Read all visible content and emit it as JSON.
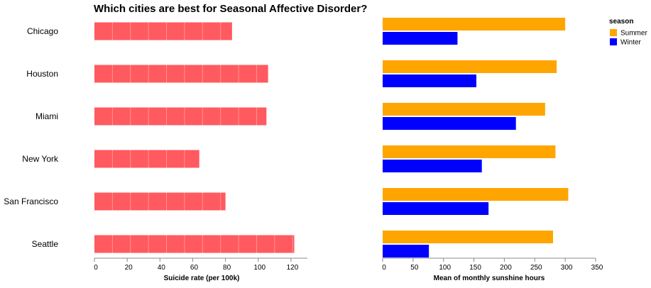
{
  "chart_data": [
    {
      "type": "bar",
      "orientation": "horizontal",
      "title": "Which cities are best for Seasonal Affective Disorder?",
      "categories": [
        "Chicago",
        "Houston",
        "Miami",
        "New York",
        "San Francisco",
        "Seattle"
      ],
      "values": [
        84,
        106,
        105,
        64,
        80,
        122
      ],
      "xlabel": "Suicide rate (per 100k)",
      "xlim": [
        0,
        130
      ],
      "xticks": [
        0,
        20,
        40,
        60,
        80,
        100,
        120
      ],
      "color": "#ff5a5f",
      "grid": false
    },
    {
      "type": "bar",
      "orientation": "horizontal",
      "grouped": true,
      "categories": [
        "Chicago",
        "Houston",
        "Miami",
        "New York",
        "San Francisco",
        "Seattle"
      ],
      "series": [
        {
          "name": "Summer",
          "color": "#ffa500",
          "values": [
            300,
            286,
            267,
            284,
            305,
            280
          ]
        },
        {
          "name": "Winter",
          "color": "#0000ff",
          "values": [
            123,
            154,
            219,
            163,
            174,
            76
          ]
        }
      ],
      "xlabel": "Mean of monthly sunshine hours",
      "xlim": [
        0,
        350
      ],
      "xticks": [
        0,
        50,
        100,
        150,
        200,
        250,
        300,
        350
      ],
      "legend_title": "season",
      "legend_position": "top-right",
      "grid": false
    }
  ]
}
